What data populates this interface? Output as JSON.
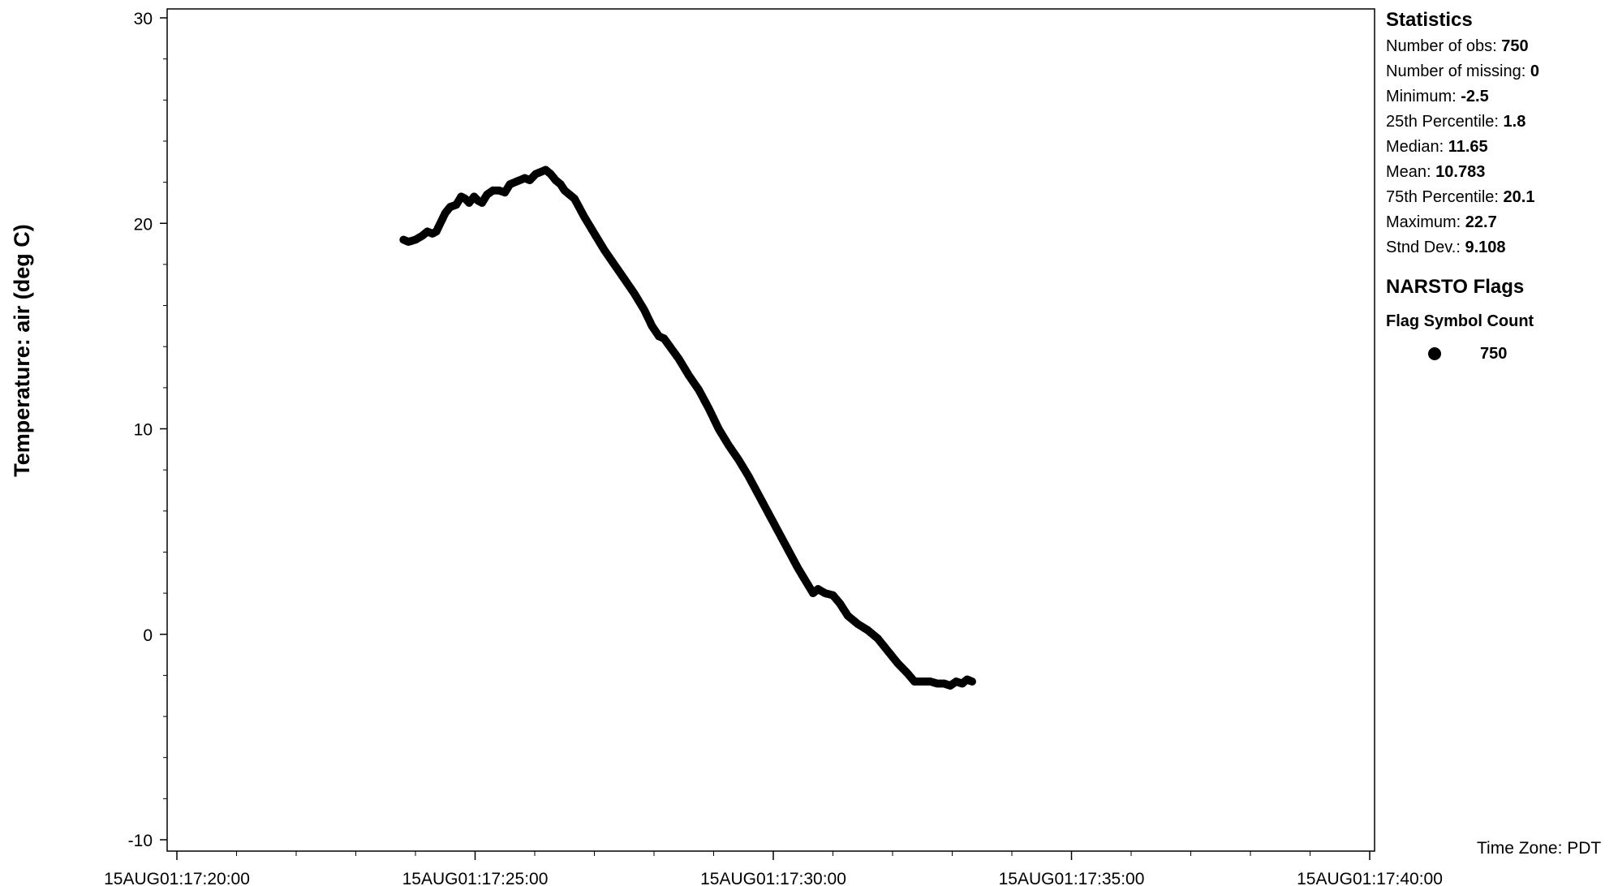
{
  "chart_data": {
    "type": "scatter",
    "title": "",
    "xlabel": "",
    "ylabel": "Temperature: air (deg C)",
    "x_is_time": true,
    "xlim_seconds": [
      0,
      1200
    ],
    "ylim": [
      -10,
      30
    ],
    "y_ticks": [
      -10,
      0,
      10,
      20,
      30
    ],
    "x_ticks": [
      {
        "t": 0,
        "label": "15AUG01:17:20:00"
      },
      {
        "t": 300,
        "label": "15AUG01:17:25:00"
      },
      {
        "t": 600,
        "label": "15AUG01:17:30:00"
      },
      {
        "t": 900,
        "label": "15AUG01:17:35:00"
      },
      {
        "t": 1200,
        "label": "15AUG01:17:40:00"
      }
    ],
    "series": [
      {
        "points": [
          {
            "t": 228,
            "v": 19.2
          },
          {
            "t": 233,
            "v": 19.1
          },
          {
            "t": 240,
            "v": 19.2
          },
          {
            "t": 247,
            "v": 19.4
          },
          {
            "t": 252,
            "v": 19.6
          },
          {
            "t": 257,
            "v": 19.5
          },
          {
            "t": 261,
            "v": 19.6
          },
          {
            "t": 265,
            "v": 20.0
          },
          {
            "t": 270,
            "v": 20.5
          },
          {
            "t": 275,
            "v": 20.8
          },
          {
            "t": 281,
            "v": 20.9
          },
          {
            "t": 286,
            "v": 21.3
          },
          {
            "t": 290,
            "v": 21.2
          },
          {
            "t": 294,
            "v": 21.0
          },
          {
            "t": 299,
            "v": 21.3
          },
          {
            "t": 303,
            "v": 21.1
          },
          {
            "t": 307,
            "v": 21.0
          },
          {
            "t": 312,
            "v": 21.4
          },
          {
            "t": 318,
            "v": 21.6
          },
          {
            "t": 324,
            "v": 21.6
          },
          {
            "t": 330,
            "v": 21.5
          },
          {
            "t": 335,
            "v": 21.9
          },
          {
            "t": 340,
            "v": 22.0
          },
          {
            "t": 345,
            "v": 22.1
          },
          {
            "t": 350,
            "v": 22.2
          },
          {
            "t": 355,
            "v": 22.1
          },
          {
            "t": 361,
            "v": 22.4
          },
          {
            "t": 366,
            "v": 22.5
          },
          {
            "t": 371,
            "v": 22.6
          },
          {
            "t": 376,
            "v": 22.4
          },
          {
            "t": 381,
            "v": 22.1
          },
          {
            "t": 386,
            "v": 21.9
          },
          {
            "t": 390,
            "v": 21.6
          },
          {
            "t": 395,
            "v": 21.4
          },
          {
            "t": 400,
            "v": 21.2
          },
          {
            "t": 410,
            "v": 20.3
          },
          {
            "t": 420,
            "v": 19.5
          },
          {
            "t": 430,
            "v": 18.7
          },
          {
            "t": 440,
            "v": 18.0
          },
          {
            "t": 450,
            "v": 17.3
          },
          {
            "t": 460,
            "v": 16.6
          },
          {
            "t": 470,
            "v": 15.8
          },
          {
            "t": 478,
            "v": 15.0
          },
          {
            "t": 485,
            "v": 14.5
          },
          {
            "t": 490,
            "v": 14.4
          },
          {
            "t": 496,
            "v": 14.0
          },
          {
            "t": 505,
            "v": 13.4
          },
          {
            "t": 515,
            "v": 12.6
          },
          {
            "t": 525,
            "v": 11.9
          },
          {
            "t": 535,
            "v": 11.0
          },
          {
            "t": 545,
            "v": 10.0
          },
          {
            "t": 555,
            "v": 9.2
          },
          {
            "t": 565,
            "v": 8.5
          },
          {
            "t": 575,
            "v": 7.7
          },
          {
            "t": 585,
            "v": 6.8
          },
          {
            "t": 595,
            "v": 5.9
          },
          {
            "t": 605,
            "v": 5.0
          },
          {
            "t": 615,
            "v": 4.1
          },
          {
            "t": 625,
            "v": 3.2
          },
          {
            "t": 635,
            "v": 2.4
          },
          {
            "t": 640,
            "v": 2.0
          },
          {
            "t": 645,
            "v": 2.2
          },
          {
            "t": 652,
            "v": 2.0
          },
          {
            "t": 660,
            "v": 1.9
          },
          {
            "t": 667,
            "v": 1.5
          },
          {
            "t": 675,
            "v": 0.9
          },
          {
            "t": 685,
            "v": 0.5
          },
          {
            "t": 695,
            "v": 0.2
          },
          {
            "t": 705,
            "v": -0.2
          },
          {
            "t": 715,
            "v": -0.8
          },
          {
            "t": 725,
            "v": -1.4
          },
          {
            "t": 735,
            "v": -1.9
          },
          {
            "t": 742,
            "v": -2.3
          },
          {
            "t": 750,
            "v": -2.3
          },
          {
            "t": 758,
            "v": -2.3
          },
          {
            "t": 765,
            "v": -2.4
          },
          {
            "t": 772,
            "v": -2.4
          },
          {
            "t": 778,
            "v": -2.5
          },
          {
            "t": 784,
            "v": -2.3
          },
          {
            "t": 790,
            "v": -2.4
          },
          {
            "t": 795,
            "v": -2.2
          },
          {
            "t": 800,
            "v": -2.3
          }
        ]
      }
    ]
  },
  "stats": {
    "title": "Statistics",
    "rows": [
      {
        "label": "Number of obs: ",
        "value": "750"
      },
      {
        "label": "Number of missing: ",
        "value": "0"
      },
      {
        "label": "Minimum: ",
        "value": "-2.5"
      },
      {
        "label": "25th Percentile: ",
        "value": "1.8"
      },
      {
        "label": "Median: ",
        "value": "11.65"
      },
      {
        "label": "Mean: ",
        "value": "10.783"
      },
      {
        "label": "75th Percentile: ",
        "value": "20.1"
      },
      {
        "label": "Maximum: ",
        "value": "22.7"
      },
      {
        "label": "Stnd Dev.: ",
        "value": "9.108"
      }
    ]
  },
  "flags": {
    "title": "NARSTO Flags",
    "subtitle": "Flag Symbol Count",
    "items": [
      {
        "symbol": "filled-circle",
        "count": "750"
      }
    ]
  },
  "timezone": "Time Zone: PDT"
}
